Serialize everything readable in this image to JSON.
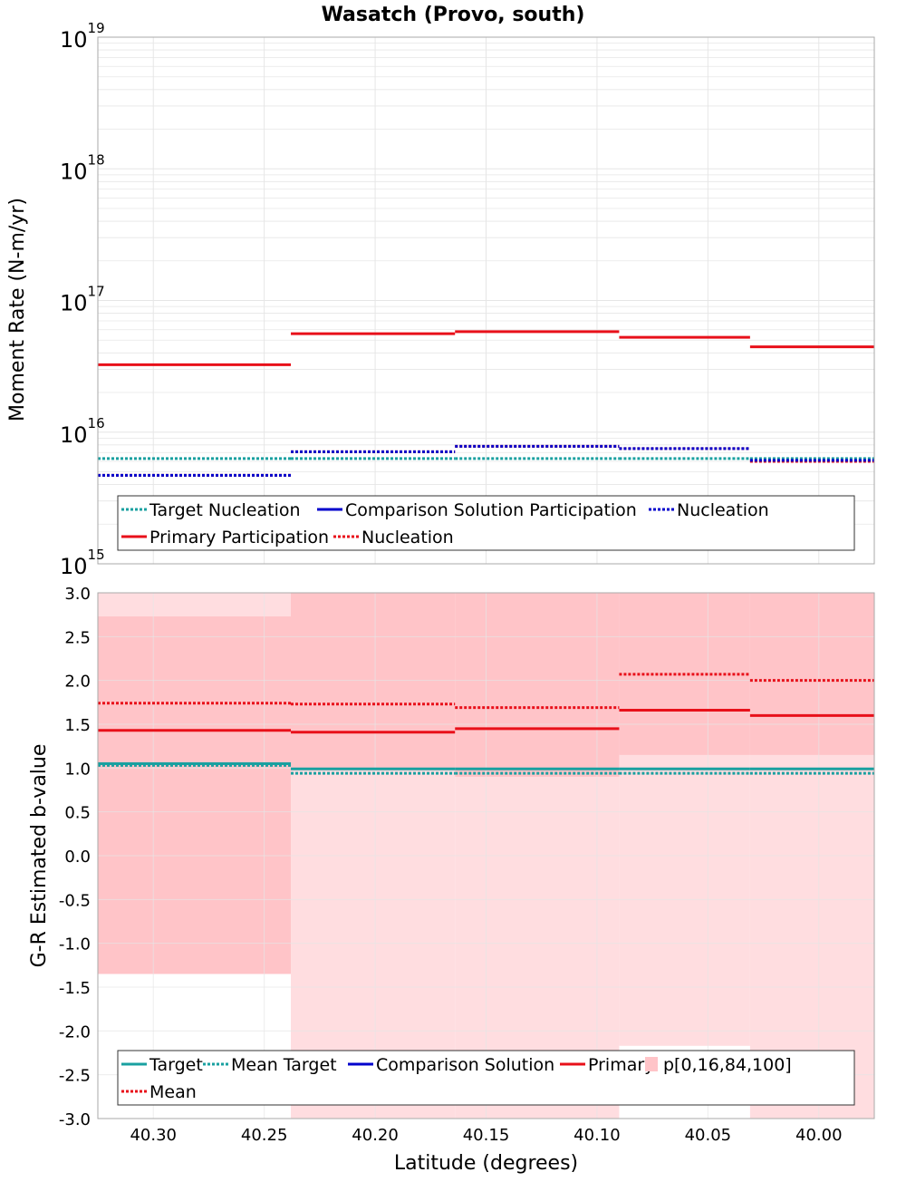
{
  "title": "Wasatch (Provo, south)",
  "colors": {
    "target": "#1aa0a0",
    "comparison": "#0000cc",
    "primary": "#e8101a",
    "band_outer": "#ffdde0",
    "band_inner": "#ffc4c8",
    "grid": "#e6e6e6",
    "frame": "#aaaaaa"
  },
  "chart_data": [
    {
      "type": "line",
      "name": "moment-rate",
      "ylabel": "Moment Rate (N-m/yr)",
      "xlabel": "",
      "yscale": "log",
      "ylim": [
        1000000000000000.0,
        1e+19
      ],
      "xlim": [
        40.325,
        39.975
      ],
      "y_tick_labels": [
        {
          "base": "10",
          "exp": "15",
          "value": 1000000000000000.0
        },
        {
          "base": "10",
          "exp": "16",
          "value": 1e+16
        },
        {
          "base": "10",
          "exp": "17",
          "value": 1e+17
        },
        {
          "base": "10",
          "exp": "18",
          "value": 1e+18
        },
        {
          "base": "10",
          "exp": "19",
          "value": 1e+19
        }
      ],
      "bins": [
        [
          40.325,
          40.238
        ],
        [
          40.238,
          40.164
        ],
        [
          40.164,
          40.09
        ],
        [
          40.09,
          40.031
        ],
        [
          40.031,
          39.97
        ]
      ],
      "series": [
        {
          "name": "Target Nucleation",
          "style": "dotted",
          "color": "#1aa0a0",
          "values": [
            6300000000000000.0,
            6300000000000000.0,
            6300000000000000.0,
            6300000000000000.0,
            6300000000000000.0
          ]
        },
        {
          "name": "Primary Participation",
          "style": "solid",
          "color": "#e8101a",
          "values": [
            3.25e+16,
            5.6e+16,
            5.8e+16,
            5.25e+16,
            4.45e+16
          ]
        },
        {
          "name": "Primary Nucleation",
          "style": "dotted",
          "color": "#e8101a",
          "values": [
            4700000000000000.0,
            7100000000000000.0,
            7800000000000000.0,
            7500000000000000.0,
            6000000000000000.0
          ]
        },
        {
          "name": "Comparison Nucleation",
          "style": "dotted",
          "color": "#0000cc",
          "values": [
            4700000000000000.0,
            7100000000000000.0,
            7800000000000000.0,
            7500000000000000.0,
            6100000000000000.0
          ]
        }
      ],
      "legend": {
        "placement": "bottom",
        "entries": [
          {
            "label": "Target Nucleation",
            "color": "#1aa0a0",
            "style": "dotted"
          },
          {
            "label": "Comparison Solution Participation",
            "color": "#0000cc",
            "style": "solid"
          },
          {
            "label": "Nucleation",
            "color": "#0000cc",
            "style": "dotted"
          },
          {
            "label": "Primary Participation",
            "color": "#e8101a",
            "style": "solid"
          },
          {
            "label": "Nucleation",
            "color": "#e8101a",
            "style": "dotted"
          }
        ]
      }
    },
    {
      "type": "line",
      "name": "b-value",
      "ylabel": "G-R Estimated b-value",
      "xlabel": "Latitude (degrees)",
      "ylim": [
        -3.0,
        3.0
      ],
      "xlim": [
        40.325,
        39.975
      ],
      "y_ticks": [
        "3.0",
        "2.5",
        "2.0",
        "1.5",
        "1.0",
        "0.5",
        "0.0",
        "-0.5",
        "-1.0",
        "-1.5",
        "-2.0",
        "-2.5",
        "-3.0"
      ],
      "y_tick_values": [
        3.0,
        2.5,
        2.0,
        1.5,
        1.0,
        0.5,
        0.0,
        -0.5,
        -1.0,
        -1.5,
        -2.0,
        -2.5,
        -3.0
      ],
      "x_ticks": [
        "40.30",
        "40.25",
        "40.20",
        "40.15",
        "40.10",
        "40.05",
        "40.00"
      ],
      "x_tick_values": [
        40.3,
        40.25,
        40.2,
        40.15,
        40.1,
        40.05,
        40.0
      ],
      "bins": [
        [
          40.325,
          40.238
        ],
        [
          40.238,
          40.164
        ],
        [
          40.164,
          40.09
        ],
        [
          40.09,
          40.031
        ],
        [
          40.031,
          39.97
        ]
      ],
      "bands": {
        "p0": [
          -1.35,
          -3.0,
          -3.0,
          -2.17,
          -3.0
        ],
        "p100": [
          3.0,
          3.0,
          3.0,
          3.0,
          3.0
        ],
        "p16": [
          -1.35,
          0.98,
          0.9,
          1.15,
          1.15
        ],
        "p84": [
          2.73,
          3.0,
          3.0,
          3.0,
          3.0
        ]
      },
      "series": [
        {
          "name": "Target",
          "style": "solid",
          "color": "#1aa0a0",
          "values": [
            1.05,
            0.99,
            0.99,
            0.99,
            0.99
          ]
        },
        {
          "name": "Mean Target",
          "style": "dotted",
          "color": "#1aa0a0",
          "values": [
            1.03,
            0.94,
            0.94,
            0.94,
            0.94
          ]
        },
        {
          "name": "Primary",
          "style": "solid",
          "color": "#e8101a",
          "values": [
            1.43,
            1.41,
            1.45,
            1.66,
            1.6
          ]
        },
        {
          "name": "Mean",
          "style": "dotted",
          "color": "#e8101a",
          "values": [
            1.74,
            1.73,
            1.69,
            2.07,
            2.0
          ]
        }
      ],
      "legend": {
        "placement": "bottom",
        "entries": [
          {
            "label": "Target",
            "color": "#1aa0a0",
            "style": "solid"
          },
          {
            "label": "Mean Target",
            "color": "#1aa0a0",
            "style": "dotted"
          },
          {
            "label": "Comparison Solution",
            "color": "#0000cc",
            "style": "solid"
          },
          {
            "label": "Primary",
            "color": "#e8101a",
            "style": "solid"
          },
          {
            "label": "p[0,16,84,100]",
            "color": "#ffc4c8",
            "style": "box"
          },
          {
            "label": "Mean",
            "color": "#e8101a",
            "style": "dotted"
          }
        ]
      }
    }
  ]
}
